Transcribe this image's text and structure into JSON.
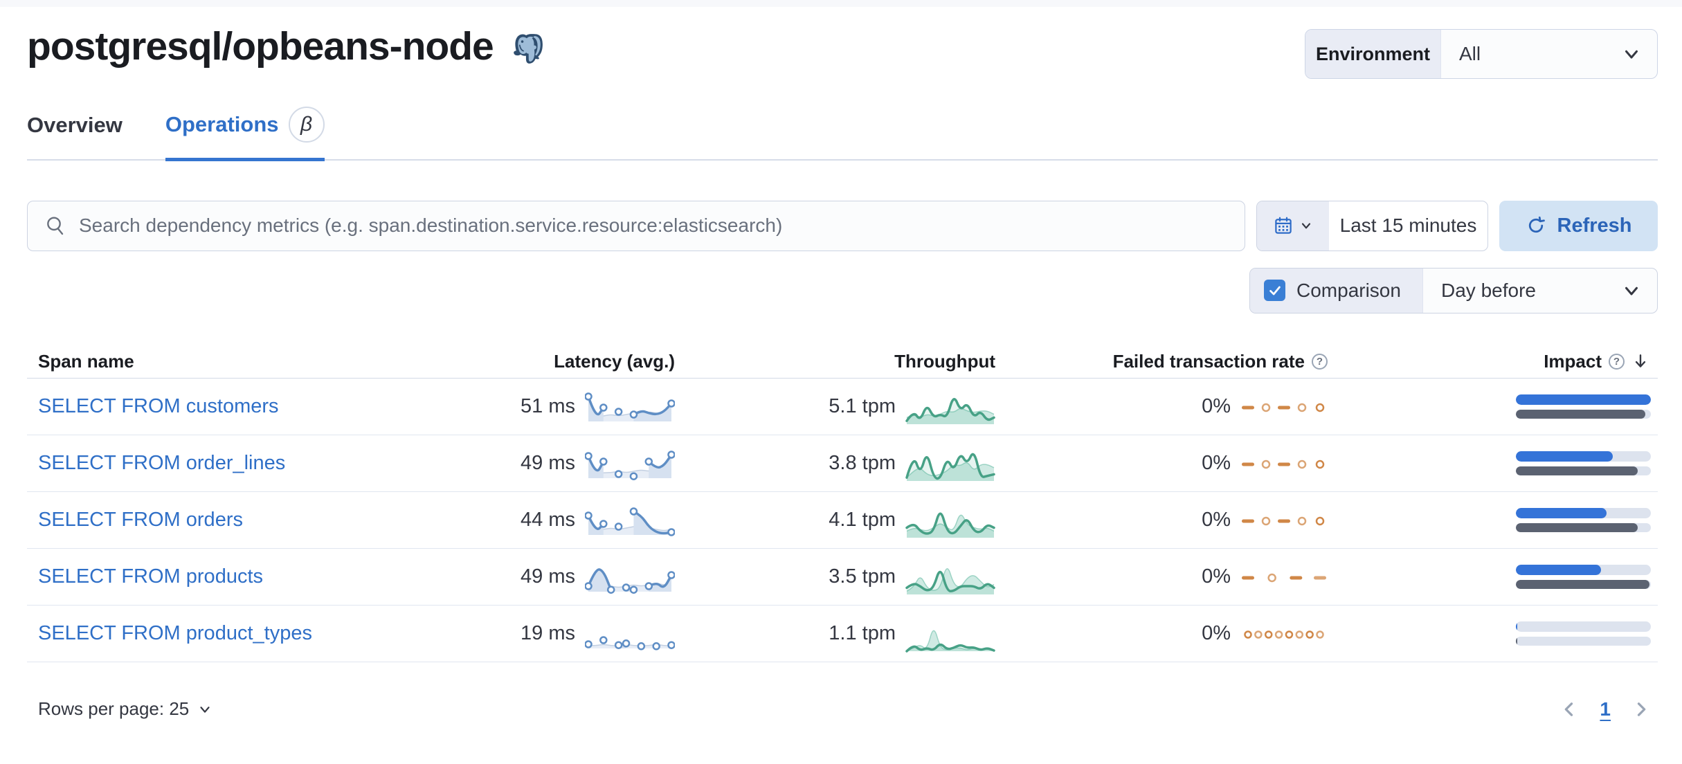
{
  "header": {
    "title": "postgresql/opbeans-node",
    "logo": "postgresql-elephant",
    "environment_label": "Environment",
    "environment_value": "All"
  },
  "tabs": [
    {
      "label": "Overview",
      "active": false
    },
    {
      "label": "Operations",
      "active": true,
      "badge": "β"
    }
  ],
  "controls": {
    "search_placeholder": "Search dependency metrics (e.g. span.destination.service.resource:elasticsearch)",
    "time_range": "Last 15 minutes",
    "refresh_label": "Refresh",
    "comparison_label": "Comparison",
    "comparison_checked": true,
    "comparison_value": "Day before"
  },
  "table": {
    "columns": [
      "Span name",
      "Latency (avg.)",
      "Throughput",
      "Failed transaction rate",
      "Impact"
    ],
    "rows": [
      {
        "span_name": "SELECT FROM customers",
        "latency": "51 ms",
        "throughput": "5.1 tpm",
        "failed_rate": "0%",
        "impact": {
          "current": 100,
          "previous": 96
        },
        "latency_spark": {
          "current": [
            9,
            1,
            5,
            null,
            3.5,
            null,
            2.5,
            4,
            3,
            2.5,
            3.5,
            6.5
          ],
          "previous": [
            2,
            1.5,
            2,
            2.5,
            2,
            2.5,
            3,
            2.5,
            3.5,
            3,
            2.5,
            3
          ]
        },
        "throughput_spark": {
          "current": [
            1,
            4,
            1,
            6,
            2,
            3,
            2,
            9,
            4,
            6.5,
            2,
            4,
            1,
            2
          ],
          "previous": [
            2,
            3,
            2,
            3,
            2.5,
            3,
            4,
            3.5,
            5,
            4,
            3.5,
            4,
            4,
            3
          ]
        },
        "failed_spark": [
          "dash",
          "ring",
          "dash",
          "ring",
          "ring"
        ]
      },
      {
        "span_name": "SELECT FROM order_lines",
        "latency": "49 ms",
        "throughput": "3.8 tpm",
        "failed_rate": "0%",
        "impact": {
          "current": 72,
          "previous": 90
        },
        "latency_spark": {
          "current": [
            8,
            1,
            6,
            null,
            1.5,
            null,
            0.7,
            null,
            6,
            3.5,
            4.5,
            8.5
          ],
          "previous": [
            2,
            1.5,
            2,
            2,
            2.5,
            2,
            2.5,
            3,
            2.5,
            3,
            3.5,
            3
          ]
        },
        "throughput_spark": {
          "current": [
            1,
            8,
            2,
            9,
            1,
            0.5,
            7,
            3,
            8.5,
            5,
            9.5,
            1,
            1.5,
            2
          ],
          "previous": [
            1,
            3,
            4,
            2,
            1.5,
            2,
            3,
            5,
            4.5,
            6,
            3,
            5,
            5,
            4
          ]
        },
        "failed_spark": [
          "dash",
          "ring",
          "dash",
          "ring",
          "ring"
        ]
      },
      {
        "span_name": "SELECT FROM orders",
        "latency": "44 ms",
        "throughput": "4.1 tpm",
        "failed_rate": "0%",
        "impact": {
          "current": 67,
          "previous": 90
        },
        "latency_spark": {
          "current": [
            7,
            1,
            4,
            null,
            3,
            null,
            8.5,
            7,
            3,
            1,
            0.5,
            1
          ],
          "previous": [
            1.5,
            2,
            2,
            2.5,
            2,
            2.5,
            3,
            3.5,
            2.5,
            2,
            1.5,
            2
          ]
        },
        "throughput_spark": {
          "current": [
            3,
            4.5,
            2,
            1,
            2,
            9,
            2,
            1,
            3.5,
            6,
            2,
            1.5,
            4,
            3
          ],
          "previous": [
            2,
            3,
            2.5,
            2,
            3,
            4.5,
            3,
            2,
            8,
            4,
            3,
            2.5,
            3,
            2
          ]
        },
        "failed_spark": [
          "dash",
          "ring",
          "dash",
          "ring",
          "ring"
        ]
      },
      {
        "span_name": "SELECT FROM products",
        "latency": "49 ms",
        "throughput": "3.5 tpm",
        "failed_rate": "0%",
        "impact": {
          "current": 63,
          "previous": 99
        },
        "latency_spark": {
          "current": [
            2,
            8.5,
            7.5,
            0.7,
            null,
            1.5,
            0.7,
            null,
            2,
            3.5,
            1,
            6
          ],
          "previous": [
            1.5,
            2,
            2.5,
            2,
            1.5,
            2,
            2.5,
            2,
            2.5,
            3,
            2.5,
            2
          ]
        },
        "throughput_spark": {
          "current": [
            2,
            3.5,
            2.5,
            1,
            2,
            8.5,
            1,
            1,
            2.5,
            2.5,
            2.5,
            1.5,
            3.5,
            2
          ],
          "previous": [
            1,
            2,
            6,
            2,
            1,
            2,
            9.5,
            3,
            2,
            5,
            6,
            4,
            2,
            3
          ]
        },
        "failed_spark": [
          "dash",
          "ring",
          "dash",
          "dash"
        ]
      },
      {
        "span_name": "SELECT FROM product_types",
        "latency": "19 ms",
        "throughput": "1.1 tpm",
        "failed_rate": "0%",
        "impact": {
          "current": 1,
          "previous": 1
        },
        "latency_spark": {
          "current": [
            1.5,
            null,
            3,
            null,
            1.2,
            1.8,
            null,
            0.8,
            null,
            0.8,
            null,
            1.2
          ],
          "previous": [
            1,
            1,
            1.5,
            1,
            1,
            1.5,
            1,
            1,
            1,
            1.5,
            1,
            1
          ]
        },
        "throughput_spark": {
          "current": [
            0,
            2,
            0.2,
            1,
            0.2,
            2.5,
            0.5,
            1,
            2,
            1,
            1.2,
            0.3,
            1,
            0.2
          ],
          "previous": [
            0,
            1,
            2,
            0.3,
            8,
            1,
            0.3,
            1,
            1,
            0.3,
            1,
            0.2,
            1,
            0
          ]
        },
        "failed_spark": [
          "ring",
          "ring",
          "ring",
          "ring",
          "ring",
          "ring",
          "ring",
          "ring"
        ]
      }
    ]
  },
  "footer": {
    "rows_per_page_label": "Rows per page: 25",
    "page": "1"
  },
  "colors": {
    "link_blue": "#2f6fc7",
    "vis_blue": "#6092C0",
    "vis_green": "#54B399",
    "vis_orange": "#D08747",
    "impact_current": "#3473d8",
    "impact_previous": "#5b6271",
    "refresh_bg": "#d2e3f4",
    "checkbox_blue": "#3a7fd5",
    "border": "#d3dae6"
  }
}
